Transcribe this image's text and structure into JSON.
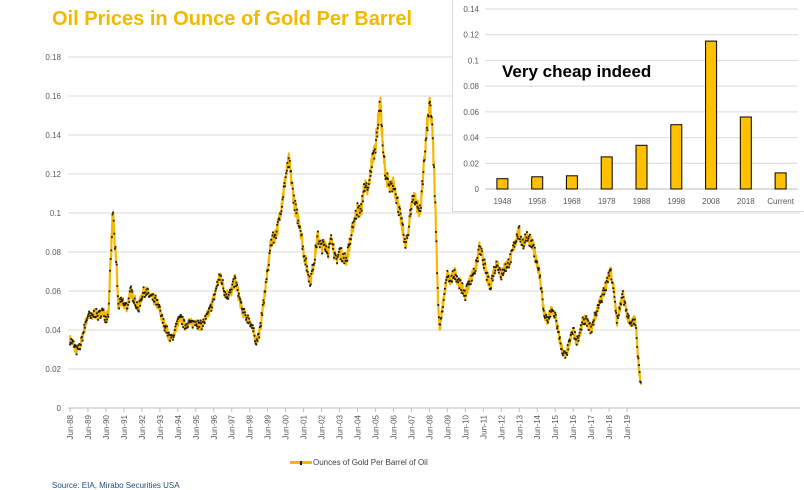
{
  "chart_data": [
    {
      "type": "line",
      "title": "Oil Prices in Ounce of Gold Per Barrel",
      "xlabel": "",
      "ylabel": "",
      "ylim": [
        0,
        0.18
      ],
      "yticks": [
        "0",
        "0.02",
        "0.04",
        "0.06",
        "0.08",
        "0.1",
        "0.12",
        "0.14",
        "0.16",
        "0.18"
      ],
      "ytick_values": [
        0,
        0.02,
        0.04,
        0.06,
        0.08,
        0.1,
        0.12,
        0.14,
        0.16,
        0.18
      ],
      "xlim_year": [
        1988.42,
        2020.2
      ],
      "xticks": [
        "Jun-88",
        "Jun-89",
        "Jun-90",
        "Jun-91",
        "Jun-92",
        "Jun-93",
        "Jun-94",
        "Jun-95",
        "Jun-96",
        "Jun-97",
        "Jun-98",
        "Jun-99",
        "Jun-00",
        "Jun-01",
        "Jun-02",
        "Jun-03",
        "Jun-04",
        "Jun-05",
        "Jun-06",
        "Jun-07",
        "Jun-08",
        "Jun-09",
        "Jun-10",
        "Jun-11",
        "Jun-12",
        "Jun-13",
        "Jun-14",
        "Jun-15",
        "Jun-16",
        "Jun-17",
        "Jun-18",
        "Jun-19"
      ],
      "grid": true,
      "legend": "bottom",
      "series": [
        {
          "name": "Ounces of Gold Per Barrel of Oil",
          "color": "#F5B800",
          "marker_color": "#1a1a1a",
          "points_year_value": [
            [
              1988.42,
              0.035
            ],
            [
              1988.6,
              0.033
            ],
            [
              1988.8,
              0.029
            ],
            [
              1989.0,
              0.032
            ],
            [
              1989.2,
              0.04
            ],
            [
              1989.42,
              0.048
            ],
            [
              1989.6,
              0.046
            ],
            [
              1989.8,
              0.049
            ],
            [
              1990.0,
              0.047
            ],
            [
              1990.2,
              0.05
            ],
            [
              1990.42,
              0.046
            ],
            [
              1990.55,
              0.048
            ],
            [
              1990.7,
              0.08
            ],
            [
              1990.8,
              0.1
            ],
            [
              1990.9,
              0.085
            ],
            [
              1991.0,
              0.075
            ],
            [
              1991.1,
              0.052
            ],
            [
              1991.3,
              0.055
            ],
            [
              1991.42,
              0.053
            ],
            [
              1991.6,
              0.052
            ],
            [
              1991.8,
              0.06
            ],
            [
              1992.0,
              0.056
            ],
            [
              1992.2,
              0.05
            ],
            [
              1992.42,
              0.058
            ],
            [
              1992.6,
              0.06
            ],
            [
              1992.8,
              0.058
            ],
            [
              1993.0,
              0.056
            ],
            [
              1993.2,
              0.055
            ],
            [
              1993.42,
              0.05
            ],
            [
              1993.6,
              0.044
            ],
            [
              1993.8,
              0.04
            ],
            [
              1994.0,
              0.035
            ],
            [
              1994.2,
              0.038
            ],
            [
              1994.42,
              0.044
            ],
            [
              1994.6,
              0.046
            ],
            [
              1994.8,
              0.042
            ],
            [
              1995.0,
              0.044
            ],
            [
              1995.2,
              0.043
            ],
            [
              1995.42,
              0.045
            ],
            [
              1995.6,
              0.042
            ],
            [
              1995.8,
              0.043
            ],
            [
              1996.0,
              0.046
            ],
            [
              1996.2,
              0.05
            ],
            [
              1996.42,
              0.056
            ],
            [
              1996.6,
              0.063
            ],
            [
              1996.8,
              0.068
            ],
            [
              1997.0,
              0.06
            ],
            [
              1997.2,
              0.058
            ],
            [
              1997.42,
              0.06
            ],
            [
              1997.6,
              0.066
            ],
            [
              1997.8,
              0.058
            ],
            [
              1998.0,
              0.05
            ],
            [
              1998.2,
              0.047
            ],
            [
              1998.42,
              0.045
            ],
            [
              1998.6,
              0.04
            ],
            [
              1998.8,
              0.034
            ],
            [
              1999.0,
              0.04
            ],
            [
              1999.2,
              0.055
            ],
            [
              1999.42,
              0.07
            ],
            [
              1999.6,
              0.085
            ],
            [
              1999.8,
              0.088
            ],
            [
              2000.0,
              0.093
            ],
            [
              2000.2,
              0.105
            ],
            [
              2000.42,
              0.118
            ],
            [
              2000.6,
              0.127
            ],
            [
              2000.8,
              0.112
            ],
            [
              2001.0,
              0.1
            ],
            [
              2001.2,
              0.095
            ],
            [
              2001.42,
              0.08
            ],
            [
              2001.6,
              0.072
            ],
            [
              2001.8,
              0.065
            ],
            [
              2002.0,
              0.075
            ],
            [
              2002.2,
              0.088
            ],
            [
              2002.42,
              0.082
            ],
            [
              2002.6,
              0.085
            ],
            [
              2002.8,
              0.08
            ],
            [
              2003.0,
              0.088
            ],
            [
              2003.2,
              0.075
            ],
            [
              2003.42,
              0.08
            ],
            [
              2003.6,
              0.078
            ],
            [
              2003.8,
              0.076
            ],
            [
              2004.0,
              0.085
            ],
            [
              2004.2,
              0.095
            ],
            [
              2004.42,
              0.102
            ],
            [
              2004.6,
              0.1
            ],
            [
              2004.8,
              0.115
            ],
            [
              2005.0,
              0.11
            ],
            [
              2005.2,
              0.125
            ],
            [
              2005.42,
              0.135
            ],
            [
              2005.6,
              0.15
            ],
            [
              2005.7,
              0.156
            ],
            [
              2005.85,
              0.13
            ],
            [
              2006.0,
              0.12
            ],
            [
              2006.2,
              0.112
            ],
            [
              2006.42,
              0.115
            ],
            [
              2006.6,
              0.108
            ],
            [
              2006.8,
              0.098
            ],
            [
              2007.0,
              0.088
            ],
            [
              2007.1,
              0.082
            ],
            [
              2007.3,
              0.095
            ],
            [
              2007.5,
              0.11
            ],
            [
              2007.7,
              0.105
            ],
            [
              2007.9,
              0.1
            ],
            [
              2008.1,
              0.122
            ],
            [
              2008.3,
              0.145
            ],
            [
              2008.45,
              0.156
            ],
            [
              2008.6,
              0.14
            ],
            [
              2008.75,
              0.105
            ],
            [
              2008.9,
              0.055
            ],
            [
              2009.0,
              0.04
            ],
            [
              2009.2,
              0.055
            ],
            [
              2009.42,
              0.068
            ],
            [
              2009.6,
              0.064
            ],
            [
              2009.8,
              0.07
            ],
            [
              2010.0,
              0.066
            ],
            [
              2010.2,
              0.062
            ],
            [
              2010.42,
              0.058
            ],
            [
              2010.6,
              0.064
            ],
            [
              2010.8,
              0.068
            ],
            [
              2011.0,
              0.072
            ],
            [
              2011.2,
              0.082
            ],
            [
              2011.42,
              0.076
            ],
            [
              2011.6,
              0.068
            ],
            [
              2011.8,
              0.062
            ],
            [
              2012.0,
              0.07
            ],
            [
              2012.2,
              0.075
            ],
            [
              2012.42,
              0.068
            ],
            [
              2012.6,
              0.072
            ],
            [
              2012.8,
              0.074
            ],
            [
              2013.0,
              0.078
            ],
            [
              2013.2,
              0.086
            ],
            [
              2013.42,
              0.09
            ],
            [
              2013.6,
              0.084
            ],
            [
              2013.8,
              0.088
            ],
            [
              2014.0,
              0.086
            ],
            [
              2014.2,
              0.082
            ],
            [
              2014.42,
              0.075
            ],
            [
              2014.6,
              0.065
            ],
            [
              2014.8,
              0.048
            ],
            [
              2015.0,
              0.044
            ],
            [
              2015.2,
              0.05
            ],
            [
              2015.42,
              0.048
            ],
            [
              2015.6,
              0.038
            ],
            [
              2015.8,
              0.03
            ],
            [
              2016.0,
              0.026
            ],
            [
              2016.2,
              0.033
            ],
            [
              2016.42,
              0.04
            ],
            [
              2016.6,
              0.034
            ],
            [
              2016.8,
              0.038
            ],
            [
              2017.0,
              0.046
            ],
            [
              2017.2,
              0.044
            ],
            [
              2017.42,
              0.04
            ],
            [
              2017.6,
              0.046
            ],
            [
              2017.8,
              0.052
            ],
            [
              2018.0,
              0.056
            ],
            [
              2018.2,
              0.062
            ],
            [
              2018.42,
              0.068
            ],
            [
              2018.5,
              0.072
            ],
            [
              2018.7,
              0.06
            ],
            [
              2018.85,
              0.044
            ],
            [
              2019.0,
              0.05
            ],
            [
              2019.2,
              0.058
            ],
            [
              2019.42,
              0.048
            ],
            [
              2019.6,
              0.042
            ],
            [
              2019.8,
              0.045
            ],
            [
              2019.9,
              0.044
            ],
            [
              2020.0,
              0.03
            ],
            [
              2020.1,
              0.018
            ],
            [
              2020.2,
              0.012
            ]
          ]
        }
      ],
      "source_note": "Source: EIA, Mirabo Securities USA"
    },
    {
      "type": "bar",
      "title": "",
      "annotation": "Very cheap indeed",
      "categories": [
        "1948",
        "1958",
        "1968",
        "1978",
        "1988",
        "1998",
        "2008",
        "2018",
        "Current"
      ],
      "values": [
        0.008,
        0.0095,
        0.0103,
        0.025,
        0.034,
        0.05,
        0.115,
        0.056,
        0.0125
      ],
      "ylim": [
        0,
        0.14
      ],
      "yticks": [
        "0",
        "0.02",
        "0.04",
        "0.06",
        "0.08",
        "0.1",
        "0.12",
        "0.14"
      ],
      "ytick_values": [
        0,
        0.02,
        0.04,
        0.06,
        0.08,
        0.1,
        0.12,
        0.14
      ],
      "grid": true,
      "bar_color": "#FFC000",
      "bar_edge_color": "#000000"
    }
  ]
}
